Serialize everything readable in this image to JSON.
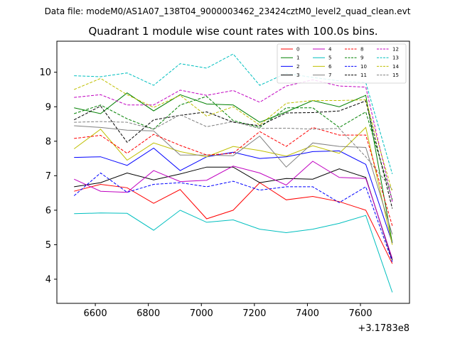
{
  "suptitle": "Data file: modeM0/AS1A07_138T04_9000003462_23424cztM0_level2_quad_clean.evt",
  "chart_data": {
    "type": "line",
    "title": "Quadrant 1 module wise count rates with 100.0s bins.",
    "xlabel": "",
    "ylabel": "",
    "x_offset_label": "+3.1783e8",
    "x": [
      6520,
      6620,
      6720,
      6820,
      6920,
      7020,
      7120,
      7220,
      7320,
      7420,
      7520,
      7620,
      7720
    ],
    "xlim": [
      6455,
      7785
    ],
    "ylim": [
      3.3,
      10.9
    ],
    "xticks": [
      6600,
      6800,
      7000,
      7200,
      7400,
      7600
    ],
    "xtick_labels": [
      "6600",
      "6800",
      "7000",
      "7200",
      "7400",
      "7600"
    ],
    "yticks": [
      4,
      5,
      6,
      7,
      8,
      9,
      10
    ],
    "ytick_labels": [
      "4",
      "5",
      "6",
      "7",
      "8",
      "9",
      "10"
    ],
    "legend": {
      "placement": "top-right",
      "columns": 4
    },
    "series": [
      {
        "name": "0",
        "color": "#ff0000",
        "dash": "solid",
        "values": [
          6.55,
          6.75,
          6.65,
          6.2,
          6.6,
          5.75,
          6.0,
          6.8,
          6.3,
          6.4,
          6.25,
          6.0,
          4.45
        ]
      },
      {
        "name": "1",
        "color": "#008000",
        "dash": "solid",
        "values": [
          8.97,
          8.8,
          9.4,
          8.88,
          9.35,
          9.08,
          9.05,
          8.55,
          8.85,
          9.18,
          9.0,
          9.33,
          5.05
        ]
      },
      {
        "name": "2",
        "color": "#0000ff",
        "dash": "solid",
        "values": [
          7.53,
          7.55,
          7.3,
          7.8,
          7.15,
          7.55,
          7.68,
          7.5,
          7.55,
          7.7,
          7.72,
          7.33,
          5.05
        ]
      },
      {
        "name": "3",
        "color": "#000000",
        "dash": "solid",
        "values": [
          6.68,
          6.8,
          7.08,
          6.88,
          7.05,
          7.25,
          7.25,
          6.8,
          6.92,
          6.9,
          7.2,
          6.95,
          4.55
        ]
      },
      {
        "name": "4",
        "color": "#c000c0",
        "dash": "solid",
        "values": [
          6.9,
          6.55,
          6.52,
          7.15,
          6.83,
          6.87,
          7.28,
          7.08,
          6.73,
          7.42,
          6.95,
          6.92,
          4.6
        ]
      },
      {
        "name": "5",
        "color": "#00bfbf",
        "dash": "solid",
        "values": [
          5.9,
          5.92,
          5.91,
          5.42,
          6.0,
          5.65,
          5.72,
          5.45,
          5.35,
          5.45,
          5.62,
          5.85,
          3.62
        ]
      },
      {
        "name": "6",
        "color": "#bfbf00",
        "dash": "solid",
        "values": [
          7.78,
          8.35,
          7.45,
          7.95,
          7.7,
          7.55,
          7.85,
          7.73,
          7.57,
          7.87,
          7.65,
          8.4,
          5.0
        ]
      },
      {
        "name": "7",
        "color": "#808080",
        "dash": "solid",
        "values": [
          8.45,
          8.4,
          8.32,
          8.3,
          7.6,
          7.6,
          7.58,
          8.15,
          7.25,
          7.95,
          7.85,
          7.82,
          5.3
        ]
      },
      {
        "name": "8",
        "color": "#ff0000",
        "dash": "dashed",
        "values": [
          8.08,
          8.17,
          7.65,
          8.2,
          7.88,
          7.6,
          7.65,
          8.28,
          7.85,
          8.4,
          8.18,
          8.18,
          5.55
        ]
      },
      {
        "name": "9",
        "color": "#008000",
        "dash": "dashed",
        "values": [
          8.8,
          9.05,
          8.65,
          8.35,
          9.05,
          9.3,
          8.6,
          8.4,
          8.97,
          8.97,
          8.4,
          8.85,
          6.3
        ]
      },
      {
        "name": "10",
        "color": "#0000ff",
        "dash": "dashed",
        "values": [
          6.42,
          7.08,
          6.52,
          6.75,
          6.8,
          6.68,
          6.84,
          6.58,
          6.68,
          6.68,
          6.22,
          6.68,
          4.5
        ]
      },
      {
        "name": "11",
        "color": "#000000",
        "dash": "dashed",
        "values": [
          8.62,
          9.02,
          7.97,
          8.62,
          8.75,
          8.85,
          8.55,
          8.45,
          8.82,
          8.83,
          8.88,
          9.17,
          6.05
        ]
      },
      {
        "name": "12",
        "color": "#c000c0",
        "dash": "dashed",
        "values": [
          9.27,
          9.35,
          9.05,
          9.05,
          9.48,
          9.33,
          9.47,
          9.13,
          9.6,
          9.78,
          9.6,
          9.57,
          6.25
        ]
      },
      {
        "name": "13",
        "color": "#00bfbf",
        "dash": "dashed",
        "values": [
          9.9,
          9.87,
          9.98,
          9.62,
          10.25,
          10.12,
          10.53,
          9.62,
          9.97,
          9.85,
          9.75,
          9.7,
          7.05
        ]
      },
      {
        "name": "14",
        "color": "#bfbf00",
        "dash": "dashed",
        "values": [
          9.5,
          9.82,
          9.35,
          8.98,
          9.33,
          8.73,
          9.0,
          8.47,
          9.1,
          9.18,
          9.18,
          9.2,
          6.53
        ]
      },
      {
        "name": "15",
        "color": "#808080",
        "dash": "dashed",
        "values": [
          8.55,
          8.57,
          8.55,
          8.35,
          8.77,
          8.42,
          8.57,
          8.37,
          8.38,
          8.35,
          8.37,
          7.55,
          6.6
        ]
      }
    ]
  }
}
